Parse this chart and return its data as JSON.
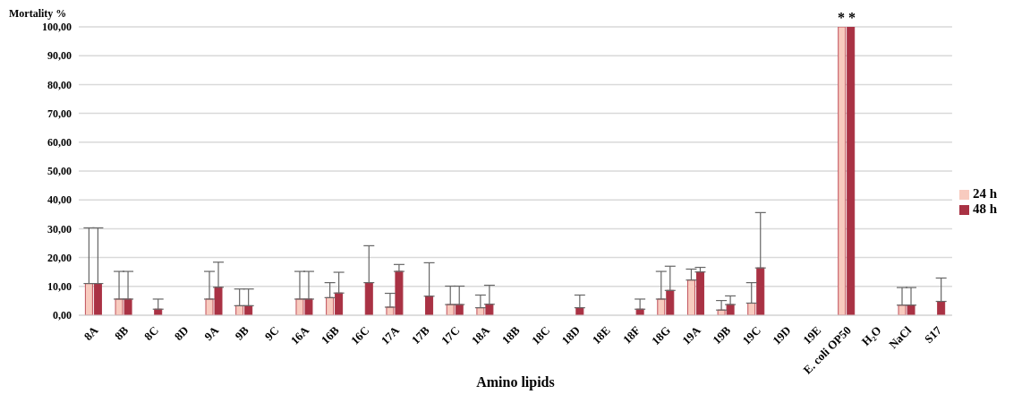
{
  "chart_data": {
    "type": "bar",
    "ylabel": "Mortality %",
    "xlabel": "Amino lipids",
    "categories": [
      "8A",
      "8B",
      "8C",
      "8D",
      "9A",
      "9B",
      "9C",
      "16A",
      "16B",
      "16C",
      "17A",
      "17B",
      "17C",
      "18A",
      "18B",
      "18C",
      "18D",
      "18E",
      "18F",
      "18G",
      "19A",
      "19B",
      "19C",
      "19D",
      "19E",
      "E. coli OP50",
      "H₂O",
      "NaCl",
      "S17"
    ],
    "series": [
      {
        "name": "24 h",
        "color": "#f8cbbf",
        "values": [
          11,
          5.6,
          0,
          0,
          5.6,
          3.3,
          0,
          5.6,
          6.1,
          0,
          2.8,
          0,
          3.7,
          2.6,
          0,
          0,
          0,
          0,
          0,
          5.6,
          12.2,
          1.8,
          4.2,
          0,
          0,
          100,
          0,
          3.5,
          0
        ],
        "errors": [
          [
            11,
            30.3
          ],
          [
            5.6,
            15.2
          ],
          null,
          null,
          [
            5.6,
            15.2
          ],
          [
            3.3,
            9.1
          ],
          null,
          [
            5.6,
            15.2
          ],
          [
            6.1,
            11.3
          ],
          null,
          [
            2.8,
            7.6
          ],
          null,
          [
            3.7,
            10.1
          ],
          [
            2.6,
            7.0
          ],
          null,
          null,
          null,
          null,
          null,
          [
            5.6,
            15.2
          ],
          [
            12.2,
            16.0
          ],
          [
            1.8,
            5.1
          ],
          [
            4.2,
            11.3
          ],
          null,
          null,
          null,
          null,
          [
            3.5,
            9.6
          ],
          null
        ]
      },
      {
        "name": "48 h",
        "color": "#a93244",
        "values": [
          11,
          5.6,
          2.1,
          0,
          9.7,
          3.3,
          0,
          5.6,
          7.7,
          11.3,
          15.2,
          6.6,
          3.7,
          3.8,
          0,
          0,
          2.6,
          0,
          2.1,
          8.6,
          15,
          3.7,
          16.4,
          0,
          0,
          100,
          0,
          3.5,
          4.8
        ],
        "errors": [
          [
            11,
            30.3
          ],
          [
            5.6,
            15.2
          ],
          [
            2.1,
            5.6
          ],
          null,
          [
            9.7,
            18.4
          ],
          [
            3.3,
            9.1
          ],
          null,
          [
            5.6,
            15.2
          ],
          [
            7.7,
            14.9
          ],
          [
            11.3,
            24.1
          ],
          [
            15.2,
            17.6
          ],
          [
            6.6,
            18.2
          ],
          [
            3.7,
            10.1
          ],
          [
            3.8,
            10.4
          ],
          null,
          null,
          [
            2.6,
            7.0
          ],
          null,
          [
            2.1,
            5.6
          ],
          [
            8.6,
            17.0
          ],
          [
            15,
            16.6
          ],
          [
            3.7,
            6.7
          ],
          [
            16.4,
            35.6
          ],
          null,
          null,
          null,
          null,
          [
            3.5,
            9.6
          ],
          [
            4.8,
            12.9
          ]
        ]
      }
    ],
    "ylim": [
      0,
      100
    ],
    "yticks": [
      {
        "value": 0,
        "label": "0,00"
      },
      {
        "value": 10,
        "label": "10,00"
      },
      {
        "value": 20,
        "label": "20,00"
      },
      {
        "value": 30,
        "label": "30,00"
      },
      {
        "value": 40,
        "label": "40,00"
      },
      {
        "value": 50,
        "label": "50,00"
      },
      {
        "value": 60,
        "label": "60,00"
      },
      {
        "value": 70,
        "label": "70,00"
      },
      {
        "value": 80,
        "label": "80,00"
      },
      {
        "value": 90,
        "label": "90,00"
      },
      {
        "value": 100,
        "label": "100,00"
      }
    ],
    "annotations": [
      {
        "text": "* *",
        "x": "E. coli OP50",
        "y": 100
      }
    ],
    "grid": "y",
    "legend": "right"
  }
}
